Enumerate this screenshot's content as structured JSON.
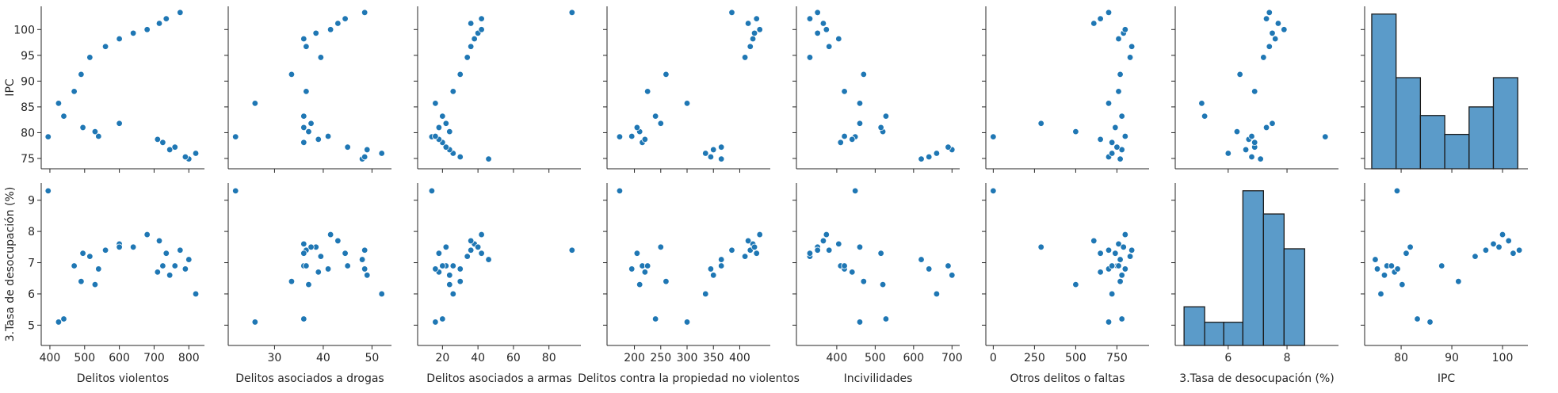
{
  "chart_data": {
    "type": "scatter",
    "kind": "pairplot",
    "point_color": "#1f77b4",
    "hist_fill": "#5b9bc9",
    "hist_edge": "#1a1a1a",
    "rows": [
      {
        "key": "IPC",
        "ylabel": "IPC",
        "ylim": [
          73,
          104.5
        ],
        "ticks": [
          75,
          80,
          85,
          90,
          95,
          100
        ]
      },
      {
        "key": "tasa",
        "ylabel": "3.Tasa de desocupación (%)",
        "ylim": [
          4.35,
          9.55
        ],
        "ticks": [
          5,
          6,
          7,
          8,
          9
        ]
      }
    ],
    "columns": [
      {
        "key": "viol",
        "xlabel": "Delitos violentos",
        "xlim": [
          375,
          845
        ],
        "ticks": [
          400,
          500,
          600,
          700,
          800
        ]
      },
      {
        "key": "drog",
        "xlabel": "Delitos asociados a drogas",
        "xlim": [
          20.5,
          54
        ],
        "ticks": [
          30,
          40,
          50
        ]
      },
      {
        "key": "arm",
        "xlabel": "Delitos asociados a armas",
        "xlim": [
          6,
          98
        ],
        "ticks": [
          20,
          40,
          60,
          80
        ]
      },
      {
        "key": "prop",
        "xlabel": "Delitos contra la propiedad no violentos",
        "xlim": [
          148,
          458
        ],
        "ticks": [
          200,
          250,
          300,
          350,
          400
        ]
      },
      {
        "key": "inc",
        "xlabel": "Incivilidades",
        "xlim": [
          295,
          720
        ],
        "ticks": [
          400,
          500,
          600,
          700
        ]
      },
      {
        "key": "otros",
        "xlabel": "Otros delitos o faltas",
        "xlim": [
          -45,
          945
        ],
        "ticks": [
          0,
          250,
          500,
          750
        ]
      },
      {
        "key": "tasa",
        "xlabel": "3.Tasa de desocupación (%)",
        "xlim": [
          4.2,
          9.75
        ],
        "ticks": [
          6,
          8
        ]
      },
      {
        "key": "IPC",
        "xlabel": "IPC",
        "xlim": [
          72.8,
          105
        ],
        "ticks": [
          80,
          90,
          100
        ]
      }
    ],
    "observations": [
      {
        "viol": 395,
        "drog": 22,
        "arm": 14,
        "prop": 172,
        "inc": 448,
        "otros": 0,
        "tasa": 9.3,
        "IPC": 79.2
      },
      {
        "viol": 425,
        "drog": 26,
        "arm": 16,
        "prop": 300,
        "inc": 460,
        "otros": 700,
        "tasa": 5.1,
        "IPC": 85.7
      },
      {
        "viol": 440,
        "drog": 36,
        "arm": 20,
        "prop": 240,
        "inc": 528,
        "otros": 780,
        "tasa": 5.2,
        "IPC": 83.2
      },
      {
        "viol": 490,
        "drog": 33.5,
        "arm": 30,
        "prop": 260,
        "inc": 470,
        "otros": 770,
        "tasa": 6.4,
        "IPC": 91.3
      },
      {
        "viol": 515,
        "drog": 39.5,
        "arm": 34,
        "prop": 410,
        "inc": 330,
        "otros": 830,
        "tasa": 7.2,
        "IPC": 94.6
      },
      {
        "viol": 560,
        "drog": 36.5,
        "arm": 36,
        "prop": 420,
        "inc": 380,
        "otros": 840,
        "tasa": 7.4,
        "IPC": 96.7
      },
      {
        "viol": 600,
        "drog": 36,
        "arm": 38,
        "prop": 425,
        "inc": 405,
        "otros": 760,
        "tasa": 7.6,
        "IPC": 98.2
      },
      {
        "viol": 640,
        "drog": 38.5,
        "arm": 40,
        "prop": 428,
        "inc": 350,
        "otros": 790,
        "tasa": 7.5,
        "IPC": 99.3
      },
      {
        "viol": 680,
        "drog": 41.5,
        "arm": 42,
        "prop": 438,
        "inc": 373,
        "otros": 800,
        "tasa": 7.9,
        "IPC": 100.0
      },
      {
        "viol": 715,
        "drog": 43,
        "arm": 36,
        "prop": 416,
        "inc": 365,
        "otros": 610,
        "tasa": 7.7,
        "IPC": 101.2
      },
      {
        "viol": 735,
        "drog": 44.5,
        "arm": 42,
        "prop": 432,
        "inc": 330,
        "otros": 650,
        "tasa": 7.3,
        "IPC": 102.1
      },
      {
        "viol": 775,
        "drog": 48.5,
        "arm": 93,
        "prop": 385,
        "inc": 350,
        "otros": 700,
        "tasa": 7.4,
        "IPC": 103.3
      },
      {
        "viol": 800,
        "drog": 48,
        "arm": 46,
        "prop": 365,
        "inc": 620,
        "otros": 770,
        "tasa": 7.1,
        "IPC": 74.9
      },
      {
        "viol": 790,
        "drog": 48.5,
        "arm": 30,
        "prop": 345,
        "inc": 640,
        "otros": 700,
        "tasa": 6.8,
        "IPC": 75.3
      },
      {
        "viol": 820,
        "drog": 52,
        "arm": 26,
        "prop": 335,
        "inc": 660,
        "otros": 720,
        "tasa": 6.0,
        "IPC": 76.0
      },
      {
        "viol": 745,
        "drog": 49,
        "arm": 24,
        "prop": 350,
        "inc": 700,
        "otros": 780,
        "tasa": 6.6,
        "IPC": 76.7
      },
      {
        "viol": 760,
        "drog": 45,
        "arm": 22,
        "prop": 365,
        "inc": 690,
        "otros": 750,
        "tasa": 6.9,
        "IPC": 77.2
      },
      {
        "viol": 725,
        "drog": 36,
        "arm": 20,
        "prop": 215,
        "inc": 410,
        "otros": 720,
        "tasa": 6.9,
        "IPC": 78.1
      },
      {
        "viol": 710,
        "drog": 39,
        "arm": 18,
        "prop": 220,
        "inc": 440,
        "otros": 650,
        "tasa": 6.7,
        "IPC": 78.7
      },
      {
        "viol": 540,
        "drog": 41,
        "arm": 16,
        "prop": 195,
        "inc": 420,
        "otros": 800,
        "tasa": 6.8,
        "IPC": 79.3
      },
      {
        "viol": 530,
        "drog": 37,
        "arm": 24,
        "prop": 210,
        "inc": 520,
        "otros": 500,
        "tasa": 6.3,
        "IPC": 80.2
      },
      {
        "viol": 495,
        "drog": 36,
        "arm": 18,
        "prop": 205,
        "inc": 515,
        "otros": 740,
        "tasa": 7.3,
        "IPC": 81.0
      },
      {
        "viol": 600,
        "drog": 37.5,
        "arm": 22,
        "prop": 250,
        "inc": 460,
        "otros": 290,
        "tasa": 7.5,
        "IPC": 81.8
      },
      {
        "viol": 470,
        "drog": 36.5,
        "arm": 26,
        "prop": 225,
        "inc": 420,
        "otros": 760,
        "tasa": 6.9,
        "IPC": 88.0
      }
    ],
    "histograms": [
      {
        "variable": "tasa",
        "bins": [
          4.5,
          5.2,
          5.85,
          6.5,
          7.2,
          7.9,
          8.6,
          9.3
        ],
        "counts": [
          1,
          0.6,
          0.6,
          4,
          3.4,
          2.5,
          0,
          1
        ]
      },
      {
        "variable": "IPC",
        "bins": [
          74.2,
          79,
          83.8,
          88.6,
          93.4,
          98.2,
          103
        ],
        "counts": [
          9,
          5.3,
          3.1,
          2,
          3.6,
          5.3
        ]
      }
    ]
  }
}
